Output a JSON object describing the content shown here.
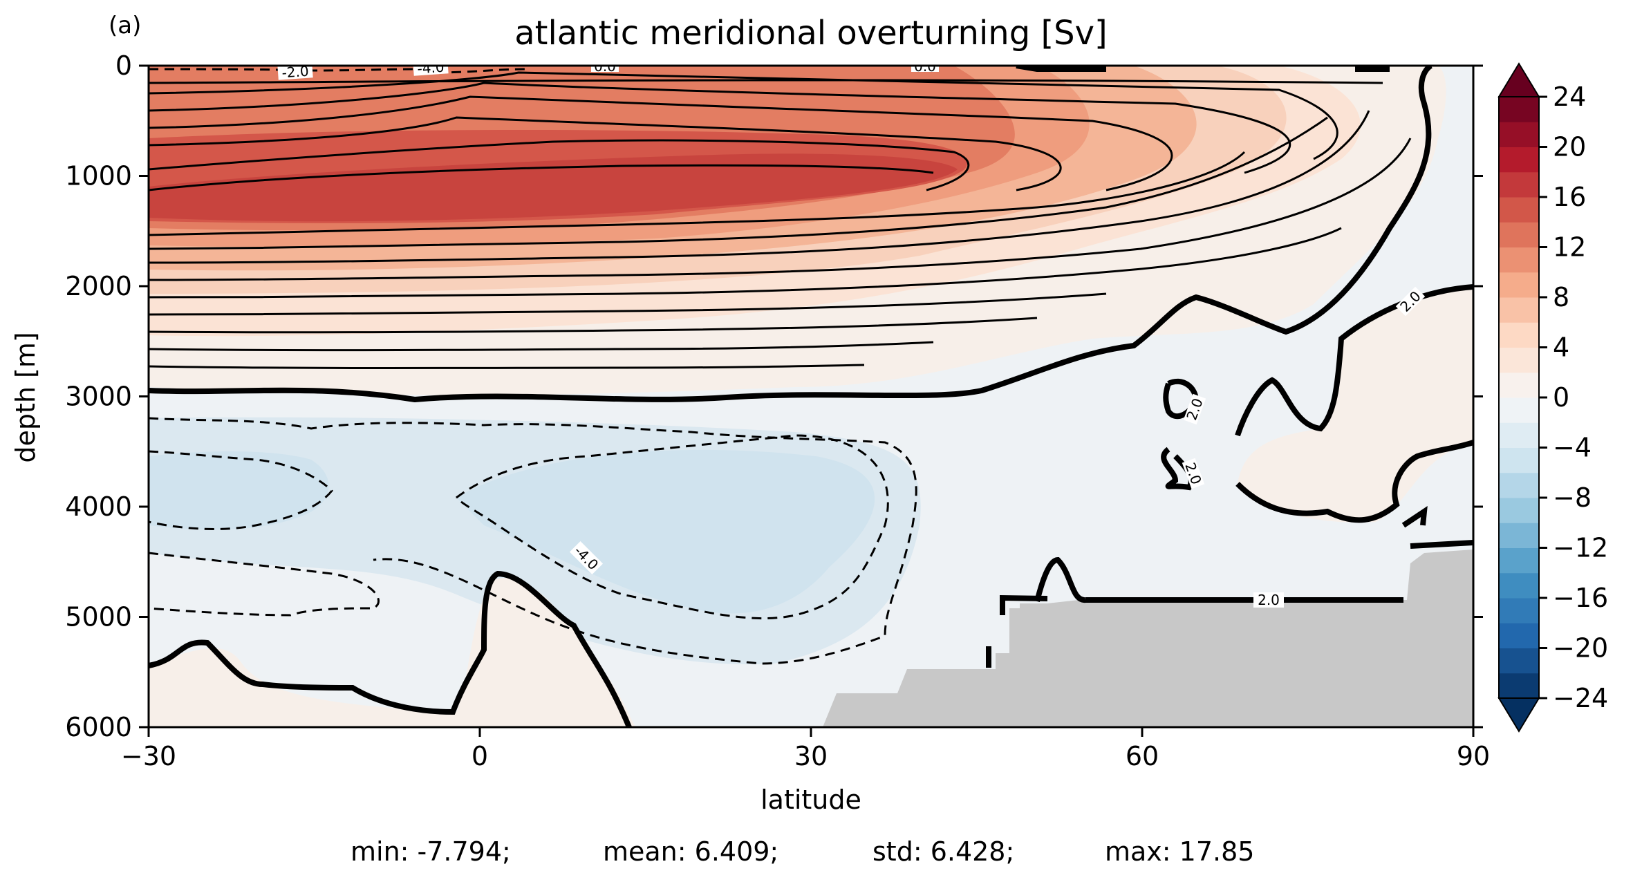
{
  "panel_label": "(a)",
  "chart_data": {
    "type": "heatmap",
    "subtype": "filled-contour",
    "title": "atlantic meridional overturning [Sv]",
    "xlabel": "latitude",
    "ylabel": "depth [m]",
    "xlim": [
      -30,
      90
    ],
    "ylim": [
      6000,
      0
    ],
    "y_inverted": true,
    "x_ticks": [
      "−30",
      "0",
      "30",
      "60",
      "90"
    ],
    "y_ticks": [
      "0",
      "1000",
      "2000",
      "3000",
      "4000",
      "5000",
      "6000"
    ],
    "colorbar": {
      "colormap": "RdBu_r",
      "extend": "both",
      "range": [
        -24,
        24
      ],
      "level_step": 2,
      "ticks": [
        "24",
        "20",
        "16",
        "12",
        "8",
        "4",
        "0",
        "−4",
        "−8",
        "−12",
        "−16",
        "−20",
        "−24"
      ]
    },
    "contour_labels": [
      "-2.0",
      "-4.0",
      "0.0",
      "0.0",
      "2.0",
      "2.0",
      "2.0",
      "-4.0",
      "2.0"
    ],
    "land_mask_color": "#c8c8c8",
    "stats": [
      "min: -7.794;",
      "mean: 6.409;",
      "std: 6.428;",
      "max: 17.85"
    ]
  }
}
